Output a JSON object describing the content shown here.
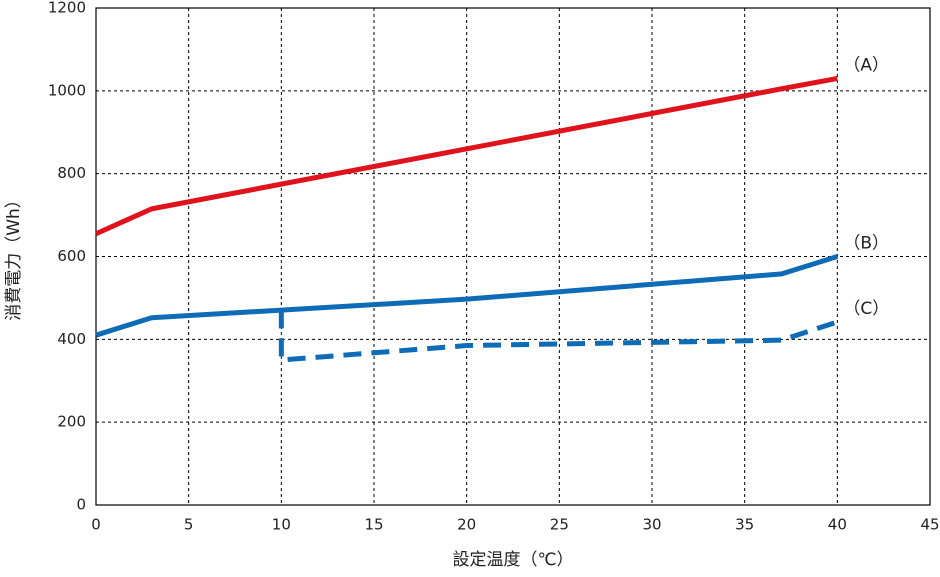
{
  "chart_data": {
    "type": "line",
    "xlabel": "設定温度（℃）",
    "ylabel": "消費電力（Wh）",
    "xlim": [
      0,
      45
    ],
    "xticks": [
      0,
      5,
      10,
      15,
      20,
      25,
      30,
      35,
      40,
      45
    ],
    "ylim": [
      0,
      1200
    ],
    "yticks": [
      0,
      200,
      400,
      600,
      800,
      1000,
      1200
    ],
    "grid": true,
    "series": [
      {
        "name": "（A）",
        "color": "#e0121c",
        "style": "solid",
        "x": [
          0,
          3,
          37,
          40
        ],
        "values": [
          655,
          715,
          1005,
          1030
        ]
      },
      {
        "name": "（B）",
        "color": "#0e6bb5",
        "style": "solid",
        "x": [
          0,
          3,
          20,
          37,
          40
        ],
        "values": [
          410,
          452,
          497,
          558,
          600
        ]
      },
      {
        "name": "（C）",
        "color": "#0e6bb5",
        "style": "dashed",
        "x": [
          10,
          10,
          20,
          37,
          40
        ],
        "values": [
          470,
          350,
          385,
          398,
          442
        ]
      }
    ]
  }
}
